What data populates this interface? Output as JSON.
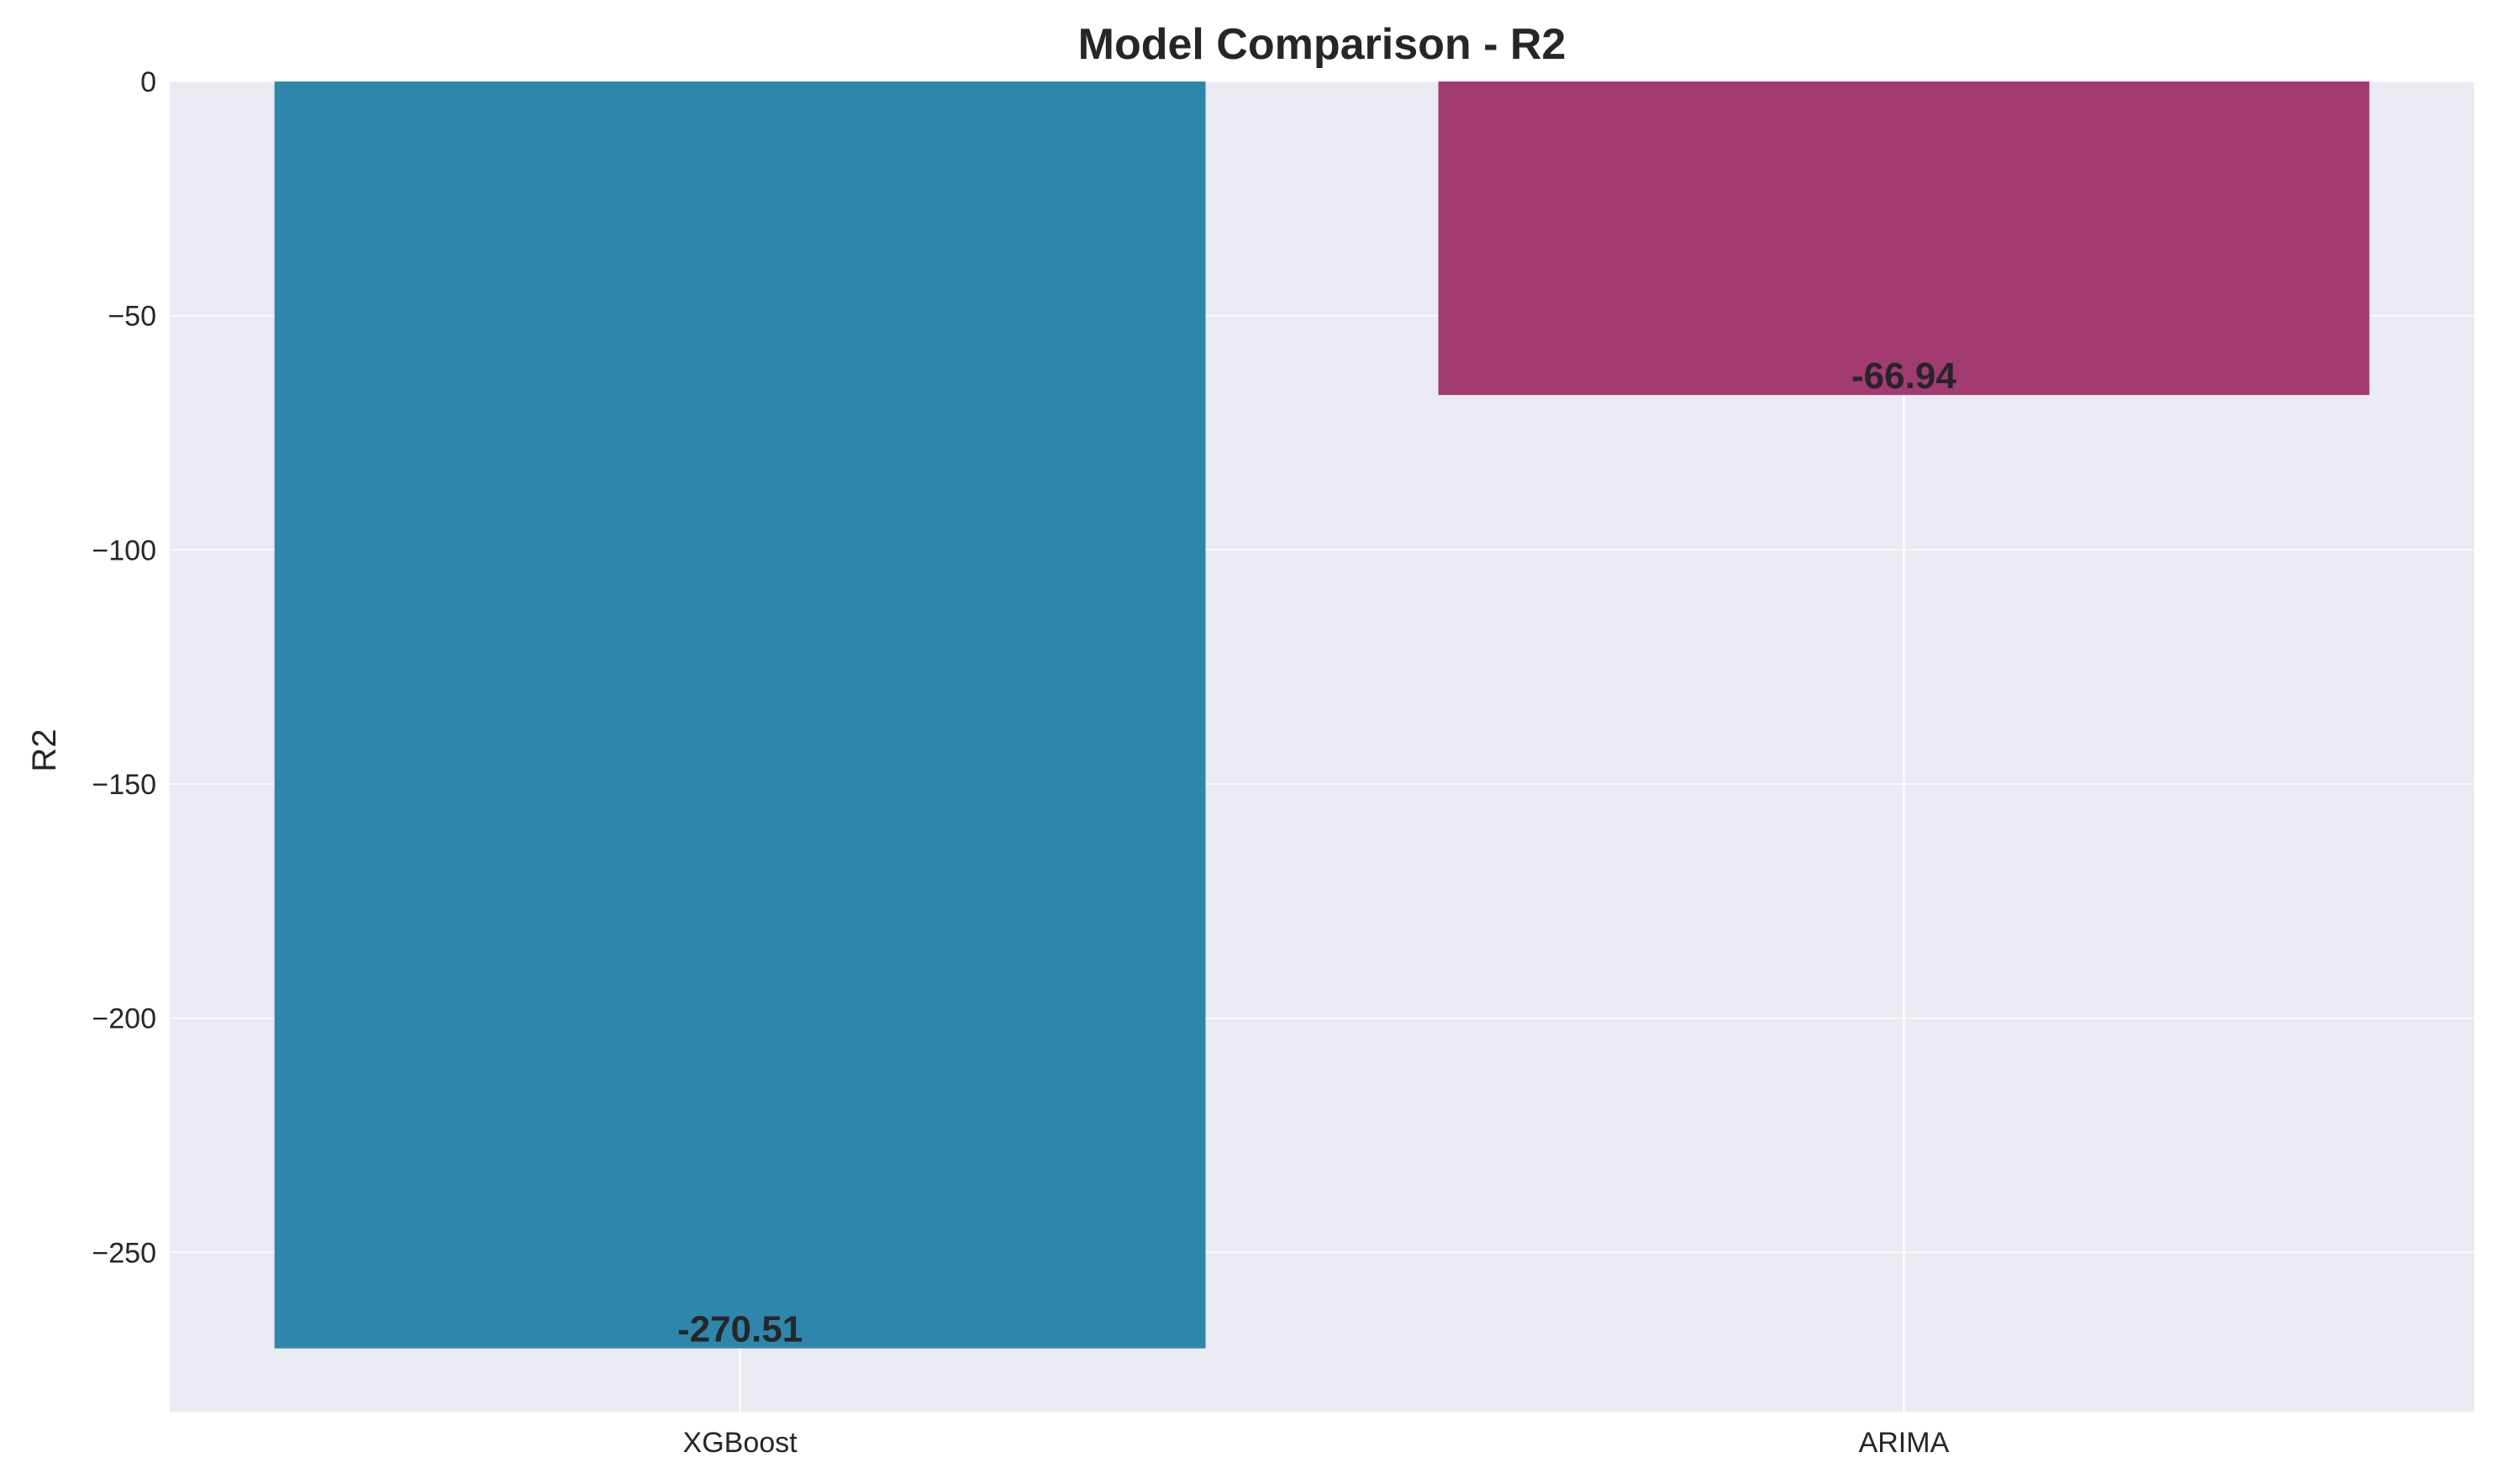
{
  "chart_data": {
    "type": "bar",
    "title": "Model Comparison - R2",
    "xlabel": "",
    "ylabel": "R2",
    "categories": [
      "XGBoost",
      "ARIMA"
    ],
    "values": [
      -270.51,
      -66.94
    ],
    "value_labels": [
      "-270.51",
      "-66.94"
    ],
    "colors": [
      "#2e86ab",
      "#a23b72"
    ],
    "ylim": [
      -284.04,
      0
    ],
    "yticks": [
      0,
      -50,
      -100,
      -150,
      -200,
      -250
    ],
    "ytick_labels": [
      "0",
      "−50",
      "−100",
      "−150",
      "−200",
      "−250"
    ],
    "grid": true,
    "background": "#eaeaf2",
    "grid_color": "#ffffff",
    "text_color": "#262626"
  }
}
